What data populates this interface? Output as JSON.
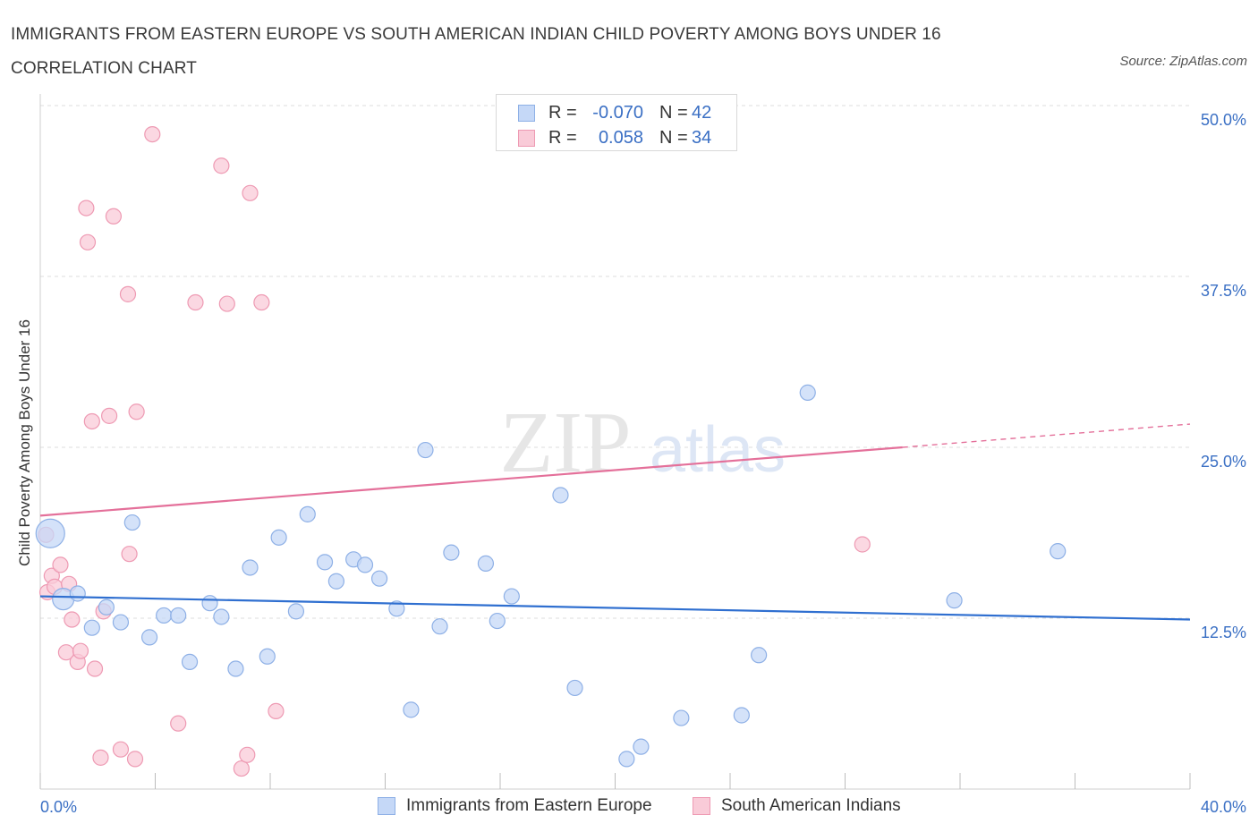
{
  "title": "IMMIGRANTS FROM EASTERN EUROPE VS SOUTH AMERICAN INDIAN CHILD POVERTY AMONG BOYS UNDER 16 CORRELATION CHART",
  "source": "Source: ZipAtlas.com",
  "watermark": {
    "zip": "ZIP",
    "atlas": "atlas"
  },
  "legend_top": {
    "rows": [
      {
        "r_label": "R =",
        "r_value": "-0.070",
        "n_label": "N =",
        "n_value": "42"
      },
      {
        "r_label": "R =",
        "r_value": "0.058",
        "n_label": "N =",
        "n_value": "34"
      }
    ]
  },
  "colors": {
    "blue_fill": "#c5d8f7",
    "blue_stroke": "#8eb0e6",
    "blue_line": "#2f6fd0",
    "pink_fill": "#f9cbd8",
    "pink_stroke": "#ee9ab3",
    "pink_line": "#e4709a",
    "tick_text": "#3a6fc4",
    "grid": "#dcdcdc"
  },
  "chart_data": {
    "type": "scatter",
    "title": "IMMIGRANTS FROM EASTERN EUROPE VS SOUTH AMERICAN INDIAN CHILD POVERTY AMONG BOYS UNDER 16 CORRELATION CHART",
    "xlabel": "",
    "ylabel": "Child Poverty Among Boys Under 16",
    "xlim": [
      0,
      40
    ],
    "ylim": [
      0,
      50
    ],
    "x_tick_labels": [
      "0.0%",
      "40.0%"
    ],
    "y_ticks": [
      12.5,
      25.0,
      37.5,
      50.0
    ],
    "y_tick_labels": [
      "12.5%",
      "25.0%",
      "37.5%",
      "50.0%"
    ],
    "grid": true,
    "legend_position": "bottom",
    "series": [
      {
        "name": "Immigrants from Eastern Europe",
        "color": "#c5d8f7",
        "trend": {
          "x": [
            0,
            40
          ],
          "y": [
            14.1,
            12.4
          ]
        },
        "points": [
          [
            0.35,
            18.7,
            "large"
          ],
          [
            0.8,
            13.9,
            "medium"
          ],
          [
            1.3,
            14.3
          ],
          [
            1.8,
            11.8
          ],
          [
            2.3,
            13.3
          ],
          [
            2.8,
            12.2
          ],
          [
            3.2,
            19.5
          ],
          [
            3.8,
            11.1
          ],
          [
            4.3,
            12.7
          ],
          [
            4.8,
            12.7
          ],
          [
            5.2,
            9.3
          ],
          [
            5.9,
            13.6
          ],
          [
            6.3,
            12.6
          ],
          [
            6.8,
            8.8
          ],
          [
            7.3,
            16.2
          ],
          [
            7.9,
            9.7
          ],
          [
            8.3,
            18.4
          ],
          [
            8.9,
            13.0
          ],
          [
            9.3,
            20.1
          ],
          [
            9.9,
            16.6
          ],
          [
            10.3,
            15.2
          ],
          [
            10.9,
            16.8
          ],
          [
            11.3,
            16.4
          ],
          [
            11.8,
            15.4
          ],
          [
            12.4,
            13.2
          ],
          [
            12.9,
            5.8
          ],
          [
            13.4,
            24.8
          ],
          [
            13.9,
            11.9
          ],
          [
            14.3,
            17.3
          ],
          [
            15.5,
            16.5
          ],
          [
            15.9,
            12.3
          ],
          [
            16.4,
            14.1
          ],
          [
            18.1,
            21.5
          ],
          [
            18.6,
            7.4
          ],
          [
            20.4,
            2.2
          ],
          [
            20.9,
            3.1
          ],
          [
            22.3,
            5.2
          ],
          [
            24.4,
            5.4
          ],
          [
            25.0,
            9.8
          ],
          [
            26.7,
            29.0
          ],
          [
            31.8,
            13.8
          ],
          [
            35.4,
            17.4
          ]
        ]
      },
      {
        "name": "South American Indians",
        "color": "#f9cbd8",
        "trend": {
          "x": [
            0,
            30.0
          ],
          "y": [
            20.0,
            25.0
          ],
          "dashed_to": {
            "x": 40.0,
            "y": 26.7
          }
        },
        "points": [
          [
            0.2,
            18.6
          ],
          [
            0.25,
            14.4
          ],
          [
            0.4,
            15.6
          ],
          [
            0.5,
            14.8
          ],
          [
            0.7,
            16.4
          ],
          [
            0.9,
            10.0
          ],
          [
            1.0,
            15.0
          ],
          [
            1.1,
            12.4
          ],
          [
            1.3,
            9.3
          ],
          [
            1.4,
            10.1
          ],
          [
            1.6,
            42.5
          ],
          [
            1.65,
            40.0
          ],
          [
            1.8,
            26.9
          ],
          [
            1.9,
            8.8
          ],
          [
            2.1,
            2.3
          ],
          [
            2.2,
            13.0
          ],
          [
            2.4,
            27.3
          ],
          [
            2.55,
            41.9
          ],
          [
            2.8,
            2.9
          ],
          [
            3.05,
            36.2
          ],
          [
            3.1,
            17.2
          ],
          [
            3.3,
            2.2
          ],
          [
            3.35,
            27.6
          ],
          [
            3.9,
            47.9
          ],
          [
            4.8,
            4.8
          ],
          [
            5.4,
            35.6
          ],
          [
            6.3,
            45.6
          ],
          [
            6.5,
            35.5
          ],
          [
            7.0,
            1.5
          ],
          [
            7.2,
            2.5
          ],
          [
            7.3,
            43.6
          ],
          [
            7.7,
            35.6
          ],
          [
            8.2,
            5.7
          ],
          [
            28.6,
            17.9
          ]
        ]
      }
    ]
  },
  "legend_bottom": [
    {
      "label": "Immigrants from Eastern Europe"
    },
    {
      "label": "South American Indians"
    }
  ]
}
